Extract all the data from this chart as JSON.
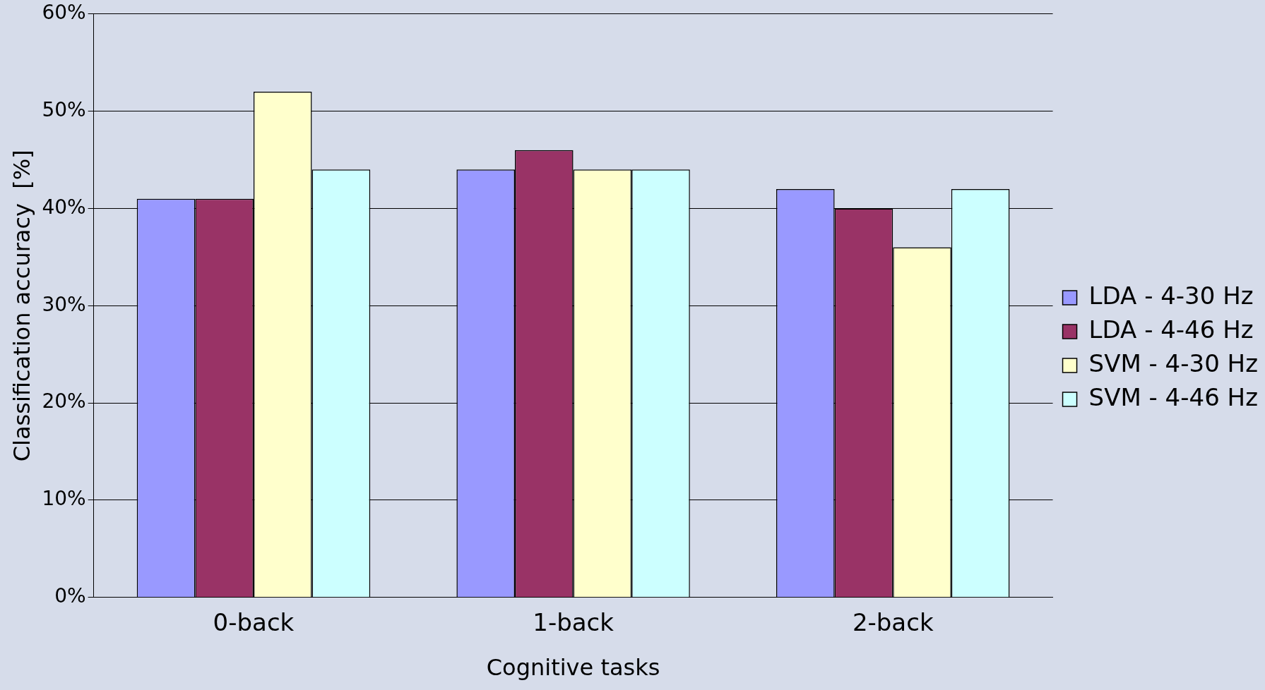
{
  "chart_data": {
    "type": "bar",
    "xlabel": "Cognitive tasks",
    "ylabel": "Classification accuracy  [%]",
    "categories": [
      "0-back",
      "1-back",
      "2-back"
    ],
    "series": [
      {
        "name": "LDA - 4-30 Hz",
        "color": "#9999ff",
        "values": [
          41,
          44,
          42
        ]
      },
      {
        "name": "LDA - 4-46 Hz",
        "color": "#993366",
        "values": [
          41,
          46,
          40
        ]
      },
      {
        "name": "SVM - 4-30 Hz",
        "color": "#ffffcc",
        "values": [
          52,
          44,
          36
        ]
      },
      {
        "name": "SVM - 4-46 Hz",
        "color": "#ccffff",
        "values": [
          44,
          44,
          42
        ]
      }
    ],
    "ylim": [
      0,
      60
    ],
    "yticks": [
      {
        "value": 0,
        "label": "0%"
      },
      {
        "value": 10,
        "label": "10%"
      },
      {
        "value": 20,
        "label": "20%"
      },
      {
        "value": 30,
        "label": "30%"
      },
      {
        "value": 40,
        "label": "40%"
      },
      {
        "value": 50,
        "label": "50%"
      },
      {
        "value": 60,
        "label": "60%"
      }
    ],
    "grid": "y",
    "legend": "right"
  }
}
